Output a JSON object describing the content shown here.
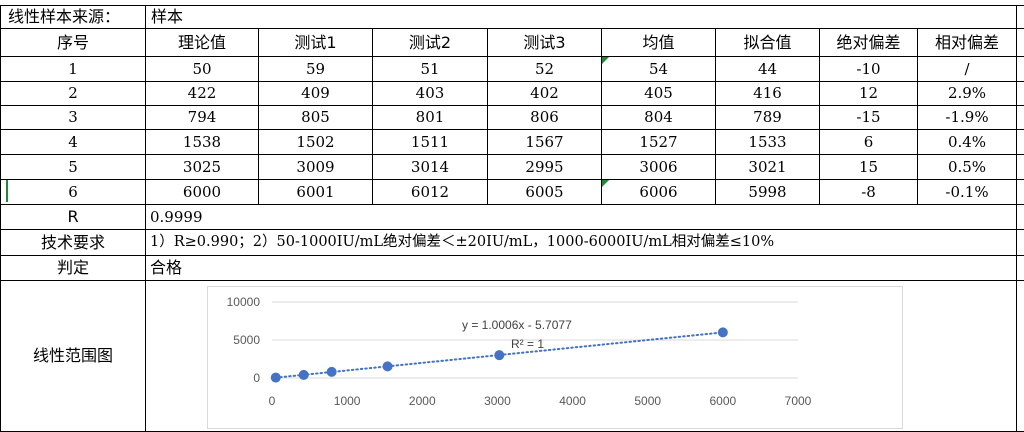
{
  "source_row": {
    "label": "线性样本来源：",
    "value": "样本"
  },
  "headers": [
    "序号",
    "理论值",
    "测试1",
    "测试2",
    "测试3",
    "均值",
    "拟合值",
    "绝对偏差",
    "相对偏差"
  ],
  "rows": [
    [
      "1",
      "50",
      "59",
      "51",
      "52",
      "54",
      "44",
      "-10",
      "/"
    ],
    [
      "2",
      "422",
      "409",
      "403",
      "402",
      "405",
      "416",
      "12",
      "2.9%"
    ],
    [
      "3",
      "794",
      "805",
      "801",
      "806",
      "804",
      "789",
      "-15",
      "-1.9%"
    ],
    [
      "4",
      "1538",
      "1502",
      "1511",
      "1567",
      "1527",
      "1533",
      "6",
      "0.4%"
    ],
    [
      "5",
      "3025",
      "3009",
      "3014",
      "2995",
      "3006",
      "3021",
      "15",
      "0.5%"
    ],
    [
      "6",
      "6000",
      "6001",
      "6012",
      "6005",
      "6006",
      "5998",
      "-8",
      "-0.1%"
    ]
  ],
  "r_row": {
    "label": "R",
    "value": "0.9999"
  },
  "requirement_row": {
    "label": "技术要求",
    "value": "1）R≥0.990；2）50-1000IU/mL绝对偏差＜±20IU/mL，1000-6000IU/mL相对偏差≤10%"
  },
  "judgement_row": {
    "label": "判定",
    "value": "合格"
  },
  "chart_row": {
    "label": "线性范围图"
  },
  "chart_data": {
    "type": "scatter",
    "x": [
      50,
      422,
      794,
      1538,
      3025,
      6000
    ],
    "y": [
      54,
      405,
      804,
      1527,
      3006,
      6006
    ],
    "trendline": {
      "type": "linear",
      "slope": 1.0006,
      "intercept": -5.7077,
      "style": "dotted"
    },
    "annotation": {
      "equation": "y = 1.0006x - 5.7077",
      "r2": "R² = 1"
    },
    "xlim": [
      0,
      7000
    ],
    "ylim": [
      0,
      10000
    ],
    "x_ticks": [
      "0",
      "1000",
      "2000",
      "3000",
      "4000",
      "5000",
      "6000",
      "7000"
    ],
    "y_ticks": [
      "0",
      "5000",
      "10000"
    ],
    "grid": "horizontal",
    "colors": {
      "marker": "#4472c4",
      "trendline": "#4472c4",
      "grid": "#d9d9d9",
      "axis_text": "#595959"
    }
  }
}
